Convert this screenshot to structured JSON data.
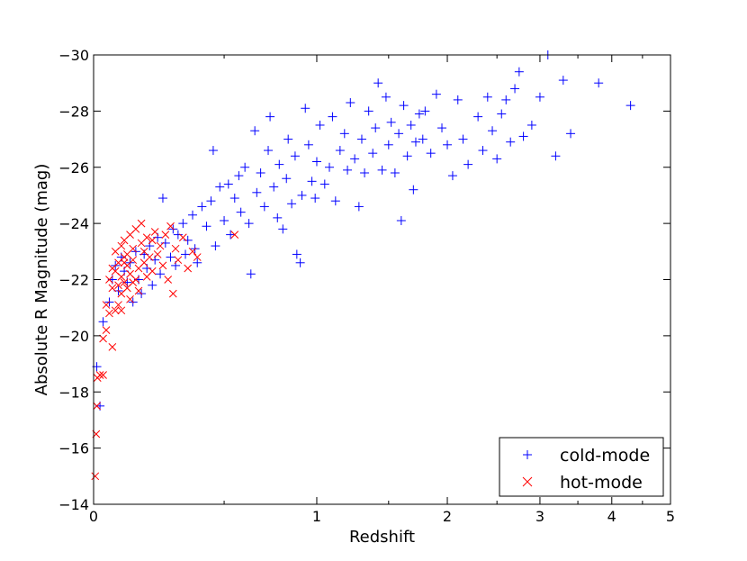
{
  "chart_data": {
    "type": "scatter",
    "title": "",
    "xlabel": "Redshift",
    "ylabel": "Absolute R Magnitude (mag)",
    "x_scale": "log(1+z)",
    "xlim": [
      0,
      5
    ],
    "ylim": [
      -14,
      -30
    ],
    "y_inverted": true,
    "x_ticks": [
      0,
      1,
      2,
      3,
      4,
      5
    ],
    "x_tick_labels": [
      "0",
      "1",
      "2",
      "3",
      "4",
      "5"
    ],
    "x_minor_ticks": [
      0.5,
      1.5,
      2.5,
      3.5,
      4.5
    ],
    "y_ticks": [
      -14,
      -16,
      -18,
      -20,
      -22,
      -24,
      -26,
      -28,
      -30
    ],
    "y_tick_labels": [
      "−14",
      "−16",
      "−18",
      "−20",
      "−22",
      "−24",
      "−26",
      "−28",
      "−30"
    ],
    "grid": false,
    "legend_position": "bottom-right",
    "series": [
      {
        "name": "cold-mode",
        "marker": "+",
        "color": "#0000ff",
        "points": [
          [
            0.01,
            -18.9
          ],
          [
            0.02,
            -17.5
          ],
          [
            0.03,
            -20.5
          ],
          [
            0.05,
            -21.2
          ],
          [
            0.06,
            -22.0
          ],
          [
            0.07,
            -22.5
          ],
          [
            0.08,
            -21.6
          ],
          [
            0.09,
            -22.8
          ],
          [
            0.1,
            -22.3
          ],
          [
            0.11,
            -21.9
          ],
          [
            0.12,
            -22.6
          ],
          [
            0.13,
            -21.2
          ],
          [
            0.14,
            -23.0
          ],
          [
            0.15,
            -22.0
          ],
          [
            0.16,
            -21.5
          ],
          [
            0.17,
            -22.9
          ],
          [
            0.18,
            -22.4
          ],
          [
            0.19,
            -23.2
          ],
          [
            0.2,
            -21.8
          ],
          [
            0.21,
            -22.7
          ],
          [
            0.22,
            -23.5
          ],
          [
            0.23,
            -22.2
          ],
          [
            0.24,
            -24.9
          ],
          [
            0.25,
            -23.3
          ],
          [
            0.27,
            -22.8
          ],
          [
            0.28,
            -23.8
          ],
          [
            0.29,
            -22.5
          ],
          [
            0.3,
            -23.6
          ],
          [
            0.32,
            -24.0
          ],
          [
            0.33,
            -22.9
          ],
          [
            0.34,
            -23.4
          ],
          [
            0.36,
            -24.3
          ],
          [
            0.37,
            -23.1
          ],
          [
            0.38,
            -22.6
          ],
          [
            0.4,
            -24.6
          ],
          [
            0.42,
            -23.9
          ],
          [
            0.44,
            -24.8
          ],
          [
            0.45,
            -26.6
          ],
          [
            0.46,
            -23.2
          ],
          [
            0.48,
            -25.3
          ],
          [
            0.5,
            -24.1
          ],
          [
            0.52,
            -25.4
          ],
          [
            0.53,
            -23.6
          ],
          [
            0.55,
            -24.9
          ],
          [
            0.57,
            -25.7
          ],
          [
            0.58,
            -24.4
          ],
          [
            0.6,
            -26.0
          ],
          [
            0.62,
            -24.0
          ],
          [
            0.63,
            -22.2
          ],
          [
            0.65,
            -27.3
          ],
          [
            0.66,
            -25.1
          ],
          [
            0.68,
            -25.8
          ],
          [
            0.7,
            -24.6
          ],
          [
            0.72,
            -26.6
          ],
          [
            0.73,
            -27.8
          ],
          [
            0.75,
            -25.3
          ],
          [
            0.77,
            -24.2
          ],
          [
            0.78,
            -26.1
          ],
          [
            0.8,
            -23.8
          ],
          [
            0.82,
            -25.6
          ],
          [
            0.83,
            -27.0
          ],
          [
            0.85,
            -24.7
          ],
          [
            0.87,
            -26.4
          ],
          [
            0.88,
            -22.9
          ],
          [
            0.9,
            -22.6
          ],
          [
            0.91,
            -25.0
          ],
          [
            0.93,
            -28.1
          ],
          [
            0.95,
            -26.8
          ],
          [
            0.97,
            -25.5
          ],
          [
            0.99,
            -24.9
          ],
          [
            1.0,
            -26.2
          ],
          [
            1.02,
            -27.5
          ],
          [
            1.05,
            -25.4
          ],
          [
            1.08,
            -26.0
          ],
          [
            1.1,
            -27.8
          ],
          [
            1.12,
            -24.8
          ],
          [
            1.15,
            -26.6
          ],
          [
            1.18,
            -27.2
          ],
          [
            1.2,
            -25.9
          ],
          [
            1.22,
            -28.3
          ],
          [
            1.25,
            -26.3
          ],
          [
            1.28,
            -24.6
          ],
          [
            1.3,
            -27.0
          ],
          [
            1.32,
            -25.8
          ],
          [
            1.35,
            -28.0
          ],
          [
            1.38,
            -26.5
          ],
          [
            1.4,
            -27.4
          ],
          [
            1.42,
            -29.0
          ],
          [
            1.45,
            -25.9
          ],
          [
            1.48,
            -28.5
          ],
          [
            1.5,
            -26.8
          ],
          [
            1.52,
            -27.6
          ],
          [
            1.55,
            -25.8
          ],
          [
            1.58,
            -27.2
          ],
          [
            1.6,
            -24.1
          ],
          [
            1.62,
            -28.2
          ],
          [
            1.65,
            -26.4
          ],
          [
            1.68,
            -27.5
          ],
          [
            1.7,
            -25.2
          ],
          [
            1.72,
            -26.9
          ],
          [
            1.75,
            -27.9
          ],
          [
            1.78,
            -27.0
          ],
          [
            1.8,
            -28.0
          ],
          [
            1.85,
            -26.5
          ],
          [
            1.9,
            -28.6
          ],
          [
            1.95,
            -27.4
          ],
          [
            2.0,
            -26.8
          ],
          [
            2.05,
            -25.7
          ],
          [
            2.1,
            -28.4
          ],
          [
            2.15,
            -27.0
          ],
          [
            2.2,
            -26.1
          ],
          [
            2.3,
            -27.8
          ],
          [
            2.35,
            -26.6
          ],
          [
            2.4,
            -28.5
          ],
          [
            2.45,
            -27.3
          ],
          [
            2.5,
            -26.3
          ],
          [
            2.55,
            -27.9
          ],
          [
            2.6,
            -28.4
          ],
          [
            2.65,
            -26.9
          ],
          [
            2.7,
            -28.8
          ],
          [
            2.75,
            -29.4
          ],
          [
            2.8,
            -27.1
          ],
          [
            2.9,
            -27.5
          ],
          [
            3.0,
            -28.5
          ],
          [
            3.2,
            -26.4
          ],
          [
            3.3,
            -29.1
          ],
          [
            3.4,
            -27.2
          ],
          [
            3.8,
            -29.0
          ],
          [
            4.3,
            -28.2
          ],
          [
            3.1,
            -30.0
          ]
        ]
      },
      {
        "name": "hot-mode",
        "marker": "x",
        "color": "#ff0000",
        "points": [
          [
            0.005,
            -15.0
          ],
          [
            0.008,
            -16.5
          ],
          [
            0.01,
            -17.5
          ],
          [
            0.012,
            -18.5
          ],
          [
            0.02,
            -18.6
          ],
          [
            0.03,
            -18.6
          ],
          [
            0.03,
            -19.9
          ],
          [
            0.04,
            -20.2
          ],
          [
            0.04,
            -21.1
          ],
          [
            0.05,
            -20.8
          ],
          [
            0.05,
            -22.0
          ],
          [
            0.06,
            -19.6
          ],
          [
            0.06,
            -21.7
          ],
          [
            0.06,
            -22.4
          ],
          [
            0.07,
            -20.9
          ],
          [
            0.07,
            -22.3
          ],
          [
            0.07,
            -23.0
          ],
          [
            0.08,
            -21.8
          ],
          [
            0.08,
            -22.6
          ],
          [
            0.08,
            -21.1
          ],
          [
            0.09,
            -23.2
          ],
          [
            0.09,
            -22.1
          ],
          [
            0.09,
            -21.5
          ],
          [
            0.1,
            -22.8
          ],
          [
            0.1,
            -21.9
          ],
          [
            0.1,
            -23.4
          ],
          [
            0.11,
            -22.5
          ],
          [
            0.11,
            -21.7
          ],
          [
            0.11,
            -22.9
          ],
          [
            0.12,
            -23.6
          ],
          [
            0.12,
            -22.2
          ],
          [
            0.12,
            -21.3
          ],
          [
            0.13,
            -22.7
          ],
          [
            0.13,
            -23.1
          ],
          [
            0.14,
            -22.0
          ],
          [
            0.14,
            -23.8
          ],
          [
            0.15,
            -22.4
          ],
          [
            0.15,
            -21.6
          ],
          [
            0.16,
            -23.3
          ],
          [
            0.16,
            -24.0
          ],
          [
            0.17,
            -22.6
          ],
          [
            0.17,
            -23.0
          ],
          [
            0.18,
            -22.1
          ],
          [
            0.18,
            -23.5
          ],
          [
            0.19,
            -22.8
          ],
          [
            0.2,
            -23.4
          ],
          [
            0.2,
            -22.3
          ],
          [
            0.21,
            -23.7
          ],
          [
            0.22,
            -22.9
          ],
          [
            0.23,
            -23.2
          ],
          [
            0.24,
            -22.5
          ],
          [
            0.25,
            -23.6
          ],
          [
            0.26,
            -22.0
          ],
          [
            0.27,
            -23.9
          ],
          [
            0.28,
            -21.5
          ],
          [
            0.29,
            -23.1
          ],
          [
            0.3,
            -22.7
          ],
          [
            0.32,
            -23.5
          ],
          [
            0.34,
            -22.4
          ],
          [
            0.36,
            -23.0
          ],
          [
            0.38,
            -22.8
          ],
          [
            0.55,
            -23.6
          ],
          [
            0.09,
            -20.9
          ],
          [
            0.13,
            -21.9
          ],
          [
            0.1,
            -22.6
          ]
        ]
      }
    ]
  }
}
